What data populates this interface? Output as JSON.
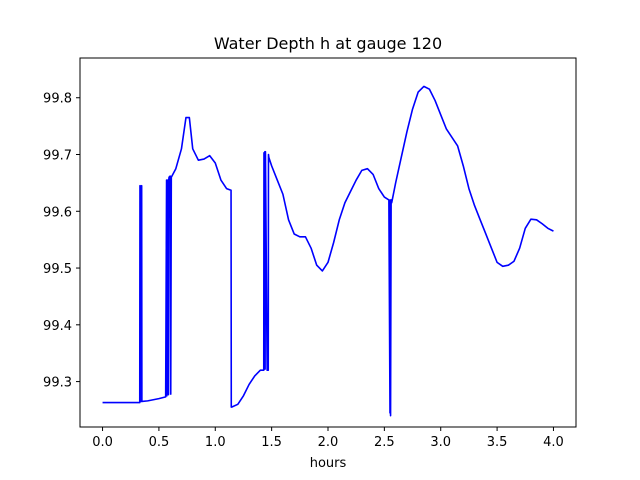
{
  "chart_data": {
    "type": "line",
    "title": "Water Depth h at gauge 120",
    "xlabel": "hours",
    "ylabel": "",
    "xlim": [
      -0.2,
      4.2
    ],
    "ylim": [
      99.22,
      99.87
    ],
    "grid": false,
    "x_ticks": [
      0.0,
      0.5,
      1.0,
      1.5,
      2.0,
      2.5,
      3.0,
      3.5,
      4.0
    ],
    "x_tick_labels": [
      "0.0",
      "0.5",
      "1.0",
      "1.5",
      "2.0",
      "2.5",
      "3.0",
      "3.5",
      "4.0"
    ],
    "y_ticks": [
      99.3,
      99.4,
      99.5,
      99.6,
      99.7,
      99.8
    ],
    "y_tick_labels": [
      "99.3",
      "99.4",
      "99.5",
      "99.6",
      "99.7",
      "99.8"
    ],
    "series": [
      {
        "color": "#0000ff",
        "x": [
          0.0,
          0.15,
          0.33,
          0.332,
          0.334,
          0.336,
          0.345,
          0.347,
          0.349,
          0.4,
          0.5,
          0.56,
          0.568,
          0.571,
          0.575,
          0.585,
          0.587,
          0.59,
          0.6,
          0.605,
          0.61,
          0.65,
          0.7,
          0.74,
          0.77,
          0.8,
          0.85,
          0.9,
          0.95,
          1.0,
          1.05,
          1.1,
          1.14,
          1.142,
          1.145,
          1.2,
          1.25,
          1.3,
          1.35,
          1.4,
          1.43,
          1.432,
          1.435,
          1.44,
          1.442,
          1.445,
          1.46,
          1.47,
          1.472,
          1.475,
          1.5,
          1.55,
          1.6,
          1.65,
          1.7,
          1.75,
          1.8,
          1.85,
          1.9,
          1.95,
          2.0,
          2.05,
          2.1,
          2.15,
          2.2,
          2.25,
          2.3,
          2.35,
          2.4,
          2.45,
          2.5,
          2.54,
          2.55,
          2.552,
          2.555,
          2.56,
          2.563,
          2.565,
          2.57,
          2.6,
          2.65,
          2.7,
          2.75,
          2.8,
          2.85,
          2.9,
          2.95,
          3.0,
          3.05,
          3.1,
          3.15,
          3.2,
          3.25,
          3.3,
          3.35,
          3.4,
          3.45,
          3.5,
          3.55,
          3.6,
          3.65,
          3.7,
          3.75,
          3.8,
          3.85,
          3.9,
          3.95,
          4.0
        ],
        "y": [
          99.263,
          99.263,
          99.263,
          99.645,
          99.645,
          99.265,
          99.265,
          99.645,
          99.265,
          99.266,
          99.27,
          99.273,
          99.655,
          99.275,
          99.655,
          99.277,
          99.655,
          99.66,
          99.662,
          99.278,
          99.66,
          99.675,
          99.71,
          99.765,
          99.765,
          99.71,
          99.69,
          99.692,
          99.698,
          99.685,
          99.655,
          99.64,
          99.637,
          99.255,
          99.255,
          99.26,
          99.275,
          99.295,
          99.31,
          99.32,
          99.32,
          99.703,
          99.322,
          99.705,
          99.322,
          99.705,
          99.32,
          99.32,
          99.7,
          99.695,
          99.68,
          99.655,
          99.63,
          99.585,
          99.56,
          99.555,
          99.555,
          99.535,
          99.505,
          99.495,
          99.51,
          99.545,
          99.585,
          99.615,
          99.635,
          99.655,
          99.672,
          99.675,
          99.665,
          99.64,
          99.625,
          99.62,
          99.245,
          99.62,
          99.24,
          99.62,
          99.62,
          99.615,
          99.62,
          99.65,
          99.695,
          99.74,
          99.78,
          99.81,
          99.82,
          99.815,
          99.795,
          99.77,
          99.745,
          99.73,
          99.715,
          99.68,
          99.64,
          99.61,
          99.585,
          99.56,
          99.535,
          99.51,
          99.503,
          99.505,
          99.512,
          99.535,
          99.57,
          99.586,
          99.585,
          99.578,
          99.57,
          99.565
        ]
      }
    ]
  }
}
